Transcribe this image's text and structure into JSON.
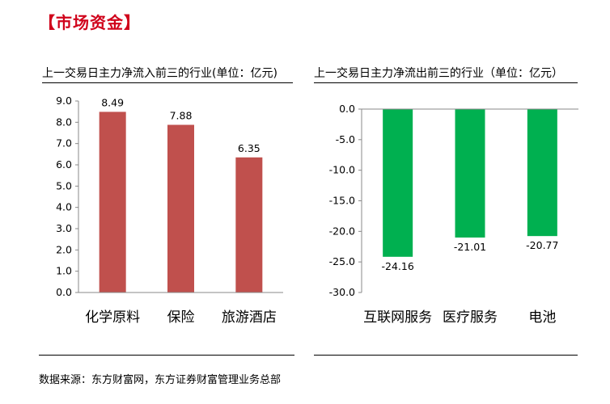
{
  "section_title": "【市场资金】",
  "source": "数据来源：东方财富网，东方证券财富管理业务总部",
  "chart_data": [
    {
      "type": "bar",
      "title": "上一交易日主力净流入前三的行业(单位：亿元)",
      "categories": [
        "化学原料",
        "保险",
        "旅游酒店"
      ],
      "values": [
        8.49,
        7.88,
        6.35
      ],
      "value_labels": [
        "8.49",
        "7.88",
        "6.35"
      ],
      "ylim": [
        0,
        9
      ],
      "yticks": [
        "0.0",
        "1.0",
        "2.0",
        "3.0",
        "4.0",
        "5.0",
        "6.0",
        "7.0",
        "8.0",
        "9.0"
      ],
      "color": "#c0504d"
    },
    {
      "type": "bar",
      "title": "上一交易日主力净流出前三的行业（单位：亿元）",
      "categories": [
        "互联网服务",
        "医疗服务",
        "电池"
      ],
      "values": [
        -24.16,
        -21.01,
        -20.77
      ],
      "value_labels": [
        "-24.16",
        "-21.01",
        "-20.77"
      ],
      "ylim": [
        -30,
        0
      ],
      "yticks": [
        "0.0",
        "-5.0",
        "-10.0",
        "-15.0",
        "-20.0",
        "-25.0",
        "-30.0"
      ],
      "color": "#00b050"
    }
  ]
}
